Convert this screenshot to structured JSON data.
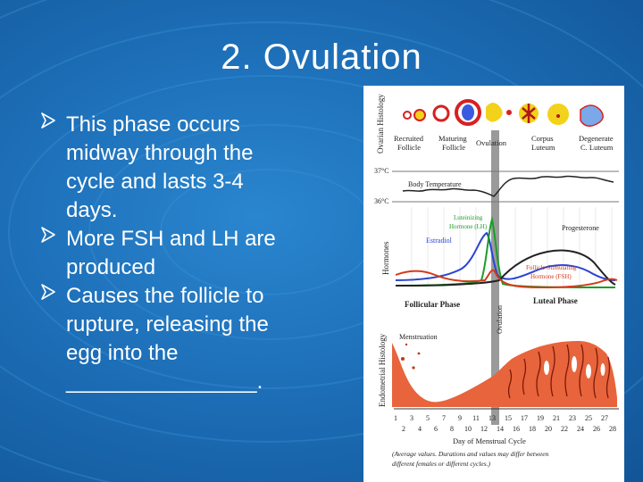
{
  "slide": {
    "title": "2.  Ovulation",
    "bullets": [
      "This phase occurs midway through the cycle and lasts 3-4 days.",
      "More FSH and LH are produced",
      "Causes the follicle to rupture, releasing the egg into the ________________."
    ],
    "bullet_lines": [
      [
        "This phase occurs",
        "midway through the",
        "cycle and lasts 3-4",
        "days."
      ],
      [
        "More FSH and LH are",
        "produced"
      ],
      [
        "Causes the follicle to",
        "rupture, releasing the",
        "egg into the",
        "________________."
      ]
    ]
  },
  "figure": {
    "side_labels": {
      "ovarian_histology": "Ovarian Histology",
      "hormones": "Hormones",
      "endometrial_histology": "Endometrial Histology",
      "ovulation": "Ovulation"
    },
    "stage_labels": [
      [
        "Recruited",
        "Follicle"
      ],
      [
        "Maturing",
        "Follicle"
      ],
      [
        "Ovulation"
      ],
      [
        "Corpus",
        "Luteum"
      ],
      [
        "Degenerate",
        "C. Luteum"
      ]
    ],
    "temperature_labels": {
      "high": "37°C",
      "low": "36°C",
      "curve": "Body Temperature"
    },
    "hormone_labels": {
      "lh": [
        "Luteinizing",
        "Hormone (LH)"
      ],
      "estradiol": "Estradiol",
      "progesterone": "Progesterone",
      "fsh": [
        "Follicle-Stimulating",
        "Hormone (FSH)"
      ]
    },
    "phase_labels": {
      "follicular": "Follicular Phase",
      "luteal": "Luteal Phase",
      "menstruation": "Menstruation"
    },
    "day_ticks_odd": [
      "1",
      "3",
      "5",
      "7",
      "9",
      "11",
      "13",
      "15",
      "17",
      "19",
      "21",
      "23",
      "25",
      "27"
    ],
    "day_ticks_even": [
      "2",
      "4",
      "6",
      "8",
      "10",
      "12",
      "14",
      "16",
      "18",
      "20",
      "22",
      "24",
      "26",
      "28"
    ],
    "axis_label": "Day of Menstrual Cycle",
    "caption": [
      "(Average values. Durations and values may differ between",
      "different females or different cycles.)"
    ],
    "colors": {
      "lh": "#1a9e2a",
      "estradiol": "#2a44d4",
      "progesterone": "#222222",
      "fsh": "#d43a1a",
      "endometrium": "#e8643c",
      "follicle_red": "#d82020",
      "corpus_yellow": "#f2d21a",
      "degenerate_blue": "#7aa8e8"
    }
  }
}
